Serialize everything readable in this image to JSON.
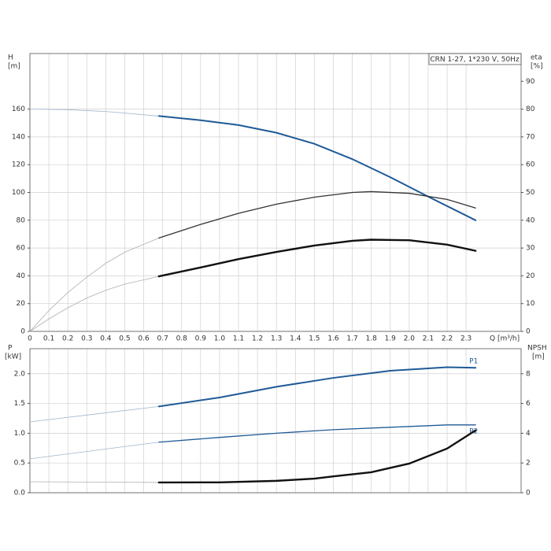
{
  "chart_data": [
    {
      "type": "line",
      "title": "CRN 1-27, 1*230 V, 50Hz",
      "xlabel": "Q [m³/h]",
      "ylabel": "H",
      "yunit": "[m]",
      "y2label": "eta",
      "y2unit": "[%]",
      "xlim": [
        0,
        2.59
      ],
      "ylim": [
        0,
        200
      ],
      "y2lim": [
        0,
        100
      ],
      "grid": true,
      "xticks": [
        0,
        0.1,
        0.2,
        0.3,
        0.4,
        0.5,
        0.6,
        0.7,
        0.8,
        0.9,
        {
          "value": 1,
          "label": "1.0"
        },
        1.1,
        1.2,
        1.3,
        1.4,
        1.5,
        1.6,
        1.7,
        1.8,
        1.9,
        {
          "value": 2,
          "label": "2.0"
        },
        2.1,
        2.2,
        2.3
      ],
      "yticks": [
        0,
        20,
        40,
        60,
        80,
        100,
        120,
        140,
        160
      ],
      "y2ticks": [
        0,
        10,
        20,
        30,
        40,
        50,
        60,
        70,
        80,
        90
      ],
      "series": [
        {
          "color": "#9fb5cc",
          "width": 0.8,
          "x": [
            0,
            0.2,
            0.4,
            0.68
          ],
          "values": [
            160,
            159.6,
            158.3,
            155
          ]
        },
        {
          "color": "#1f5a96",
          "width": 2,
          "x": [
            0.68,
            0.9,
            1.1,
            1.3,
            1.5,
            1.7,
            1.9,
            2.1,
            2.35
          ],
          "values": [
            155,
            152,
            148.5,
            143,
            135,
            124,
            111,
            97,
            80
          ]
        },
        {
          "color": "#b0b0b0",
          "width": 0.8,
          "axis": "y2",
          "x": [
            0,
            0.1,
            0.2,
            0.3,
            0.4,
            0.5,
            0.68
          ],
          "values": [
            0,
            7.5,
            14,
            19.5,
            24.5,
            28.5,
            33.6
          ]
        },
        {
          "color": "#333333",
          "width": 1.3,
          "axis": "y2",
          "x": [
            0.68,
            0.9,
            1.1,
            1.3,
            1.5,
            1.7,
            1.8,
            2.0,
            2.2,
            2.35
          ],
          "values": [
            33.6,
            38.5,
            42.5,
            45.8,
            48.3,
            50,
            50.3,
            49.7,
            47.5,
            44.4
          ]
        },
        {
          "color": "#b0b0b0",
          "width": 0.8,
          "axis": "y2",
          "x": [
            0,
            0.1,
            0.2,
            0.3,
            0.4,
            0.5,
            0.68
          ],
          "values": [
            0,
            4.5,
            8.5,
            12,
            14.8,
            17,
            19.8
          ]
        },
        {
          "color": "#111111",
          "width": 2.4,
          "axis": "y2",
          "x": [
            0.68,
            0.9,
            1.1,
            1.3,
            1.5,
            1.7,
            1.8,
            2.0,
            2.2,
            2.35
          ],
          "values": [
            19.8,
            23,
            26,
            28.6,
            30.9,
            32.6,
            33,
            32.8,
            31.2,
            29
          ]
        }
      ]
    },
    {
      "type": "line",
      "ylabel": "P",
      "yunit": "[kW]",
      "y2label": "NPSH",
      "y2unit": "[m]",
      "xlim": [
        0,
        2.59
      ],
      "ylim": [
        0,
        2.42
      ],
      "y2lim": [
        0,
        9.68
      ],
      "grid": true,
      "yticks": [
        {
          "value": 0,
          "label": "0.0"
        },
        0.5,
        {
          "value": 1,
          "label": "1.0"
        },
        1.5,
        {
          "value": 2,
          "label": "2.0"
        }
      ],
      "y2ticks": [
        0,
        2,
        4,
        6,
        8
      ],
      "series": [
        {
          "color": "#9fb5cc",
          "width": 0.8,
          "x": [
            0,
            0.68
          ],
          "values": [
            1.19,
            1.45
          ]
        },
        {
          "name": "P1",
          "color": "#1f5a96",
          "width": 2,
          "x": [
            0.68,
            1.0,
            1.3,
            1.6,
            1.9,
            2.2,
            2.35
          ],
          "values": [
            1.45,
            1.6,
            1.78,
            1.93,
            2.05,
            2.11,
            2.1
          ]
        },
        {
          "color": "#9fb5cc",
          "width": 0.8,
          "x": [
            0,
            0.68
          ],
          "values": [
            0.57,
            0.85
          ]
        },
        {
          "name": "P2",
          "color": "#1f5a96",
          "width": 1.3,
          "x": [
            0.68,
            1.0,
            1.3,
            1.6,
            1.9,
            2.2,
            2.35
          ],
          "values": [
            0.85,
            0.93,
            1.0,
            1.06,
            1.1,
            1.14,
            1.14
          ]
        },
        {
          "color": "#b0b0b0",
          "width": 0.8,
          "axis": "y2",
          "x": [
            0,
            0.68
          ],
          "values": [
            0.74,
            0.69
          ]
        },
        {
          "color": "#111111",
          "width": 2.4,
          "axis": "y2",
          "x": [
            0.68,
            1.0,
            1.3,
            1.5,
            1.6,
            1.8,
            2.0,
            2.2,
            2.35
          ],
          "values": [
            0.69,
            0.7,
            0.8,
            0.95,
            1.1,
            1.38,
            1.96,
            2.97,
            4.19
          ]
        }
      ]
    }
  ]
}
